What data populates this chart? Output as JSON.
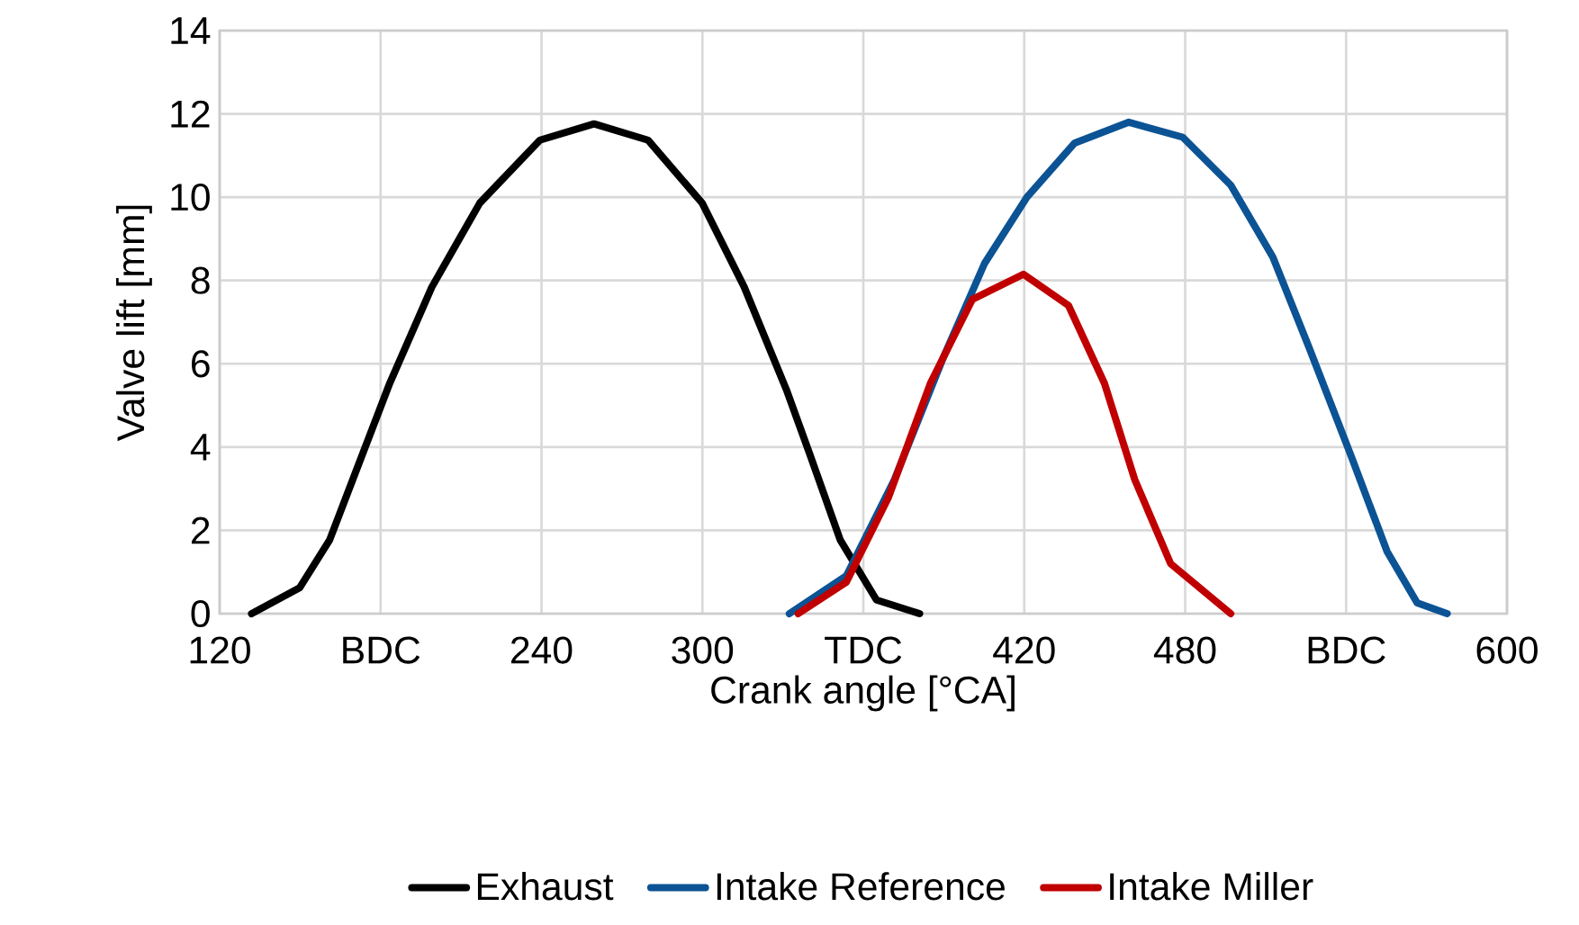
{
  "chart_data": {
    "type": "line",
    "xlabel": "Crank angle [°CA]",
    "ylabel": "Valve lift [mm]",
    "xlim": [
      120,
      600
    ],
    "ylim": [
      0,
      14
    ],
    "xticks": [
      120,
      {
        "value": 180,
        "label": "BDC"
      },
      240,
      300,
      {
        "value": 360,
        "label": "TDC"
      },
      420,
      480,
      {
        "value": 540,
        "label": "BDC"
      },
      600
    ],
    "yticks": [
      0,
      2,
      4,
      6,
      8,
      10,
      12,
      14
    ],
    "grid": true,
    "legend": "bottom",
    "marker": "none",
    "line_style": "solid",
    "series": [
      {
        "name": "Exhaust",
        "color": "#000000",
        "x": [
          131.9,
          149.8,
          161,
          172.2,
          183.4,
          199.1,
          217,
          239.4,
          259.6,
          279.7,
          299.9,
          315.6,
          331.3,
          340.2,
          351.4,
          364.9,
          381
        ],
        "values": [
          0,
          0.62,
          1.77,
          3.65,
          5.53,
          7.84,
          9.86,
          11.37,
          11.76,
          11.37,
          9.86,
          7.84,
          5.38,
          3.8,
          1.77,
          0.33,
          0
        ]
      },
      {
        "name": "Intake Reference",
        "color": "#0B5394",
        "x": [
          332.4,
          353.7,
          371.6,
          389.5,
          405.2,
          421,
          438.8,
          459,
          479.1,
          497,
          512.7,
          526.2,
          541.8,
          555.3,
          566.5,
          577.7
        ],
        "values": [
          0,
          0.91,
          3.22,
          6.1,
          8.41,
          10,
          11.3,
          11.8,
          11.44,
          10.29,
          8.56,
          6.39,
          3.8,
          1.49,
          0.26,
          0
        ]
      },
      {
        "name": "Intake Miller",
        "color": "#C00000",
        "x": [
          335.7,
          353.7,
          369.3,
          385,
          400.7,
          419.7,
          436.5,
          449.9,
          461.2,
          474.6,
          497
        ],
        "values": [
          0,
          0.76,
          2.78,
          5.53,
          7.55,
          8.15,
          7.4,
          5.53,
          3.22,
          1.2,
          0
        ]
      }
    ]
  }
}
